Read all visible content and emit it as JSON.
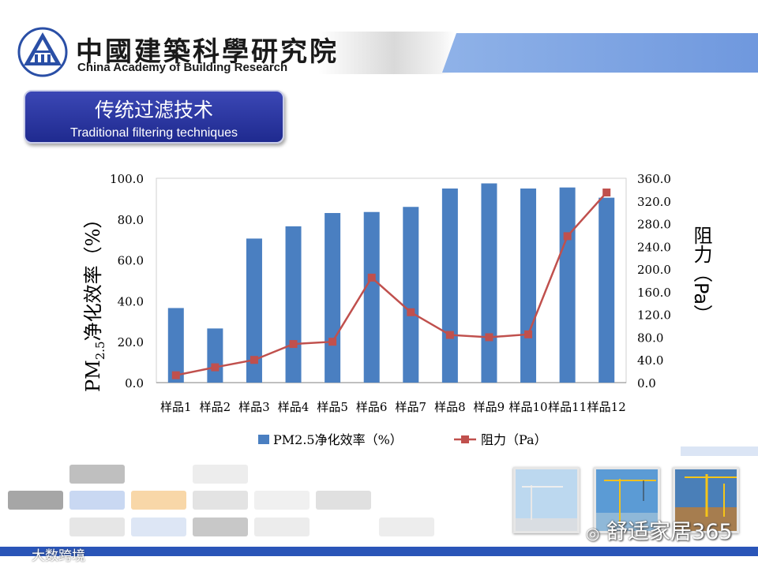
{
  "header": {
    "org_cn": "中國建築科學研究院",
    "org_en": "China Academy of Building Research",
    "logo_icon": "cabr-logo-icon"
  },
  "slide": {
    "title_cn": "传统过滤技术",
    "title_en": "Traditional filtering techniques"
  },
  "chart_data": {
    "type": "bar",
    "categories": [
      "样品1",
      "样品2",
      "样品3",
      "样品4",
      "样品5",
      "样品6",
      "样品7",
      "样品8",
      "样品9",
      "样品10",
      "样品11",
      "样品12"
    ],
    "series": [
      {
        "name": "PM2.5净化效率（%）",
        "type": "bar",
        "axis": "left",
        "color": "#4a7fc1",
        "values": [
          36.5,
          26.5,
          70.5,
          76.5,
          83.0,
          83.5,
          86.0,
          95.0,
          97.5,
          95.0,
          95.5,
          90.5
        ]
      },
      {
        "name": "阻力（Pa）",
        "type": "line",
        "axis": "right",
        "color": "#c0504d",
        "values": [
          13,
          27,
          40,
          68,
          72,
          185,
          124,
          84,
          80,
          85,
          258,
          335
        ]
      }
    ],
    "ylabel_left_main": "PM",
    "ylabel_left_sub": "2.5",
    "ylabel_left_rest": "净化效率（%）",
    "ylabel_right": "阻力（Pa）",
    "ylim_left": [
      0,
      100
    ],
    "ylim_right": [
      0,
      360
    ],
    "yticks_left": [
      "0.0",
      "20.0",
      "40.0",
      "60.0",
      "80.0",
      "100.0"
    ],
    "yticks_right": [
      "0.0",
      "40.0",
      "80.0",
      "120.0",
      "160.0",
      "200.0",
      "240.0",
      "280.0",
      "320.0",
      "360.0"
    ],
    "grid": false,
    "legend": "bottom"
  },
  "watermarks": {
    "right": "舒适家居365",
    "left": "大数跨境"
  },
  "colors": {
    "bar": "#4a7fc1",
    "line": "#c0504d",
    "title_box": "#2a349e",
    "band": "#7aa0e0",
    "bottom_bar": "#2a55b8"
  }
}
